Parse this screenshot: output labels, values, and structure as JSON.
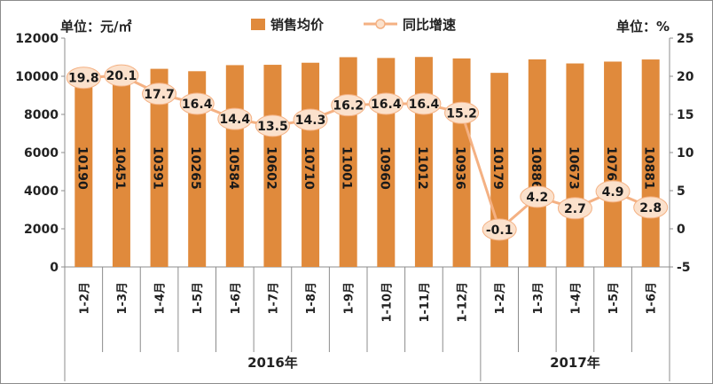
{
  "chart_data": {
    "type": "bar+line",
    "left_unit_label": "单位：元/㎡",
    "right_unit_label": "单位：%",
    "legend": [
      "销售均价",
      "同比增速"
    ],
    "legend_position": "top-center",
    "categories": [
      "1-2月",
      "1-3月",
      "1-4月",
      "1-5月",
      "1-6月",
      "1-7月",
      "1-8月",
      "1-9月",
      "1-10月",
      "1-11月",
      "1-12月",
      "1-2月",
      "1-3月",
      "1-4月",
      "1-5月",
      "1-6月"
    ],
    "groups": [
      {
        "label": "2016年",
        "count": 11
      },
      {
        "label": "2017年",
        "count": 5
      }
    ],
    "series": [
      {
        "name": "销售均价",
        "kind": "bar",
        "axis": "left",
        "color": "#E08A3C",
        "values": [
          10190,
          10451,
          10391,
          10265,
          10584,
          10602,
          10710,
          11001,
          10960,
          11012,
          10936,
          10179,
          10886,
          10673,
          10769,
          10881
        ],
        "labels": [
          "10190",
          "10451",
          "10391",
          "10265",
          "10584",
          "10602",
          "10710",
          "11001",
          "10960",
          "11012",
          "10936",
          "10179",
          "10886",
          "10673",
          "10769",
          "10881"
        ]
      },
      {
        "name": "同比增速",
        "kind": "line",
        "axis": "right",
        "color": "#F4B183",
        "values": [
          19.8,
          20.1,
          17.7,
          16.4,
          14.4,
          13.5,
          14.3,
          16.2,
          16.4,
          16.4,
          15.2,
          -0.1,
          4.2,
          2.7,
          4.9,
          2.8
        ],
        "labels": [
          "19.8",
          "20.1",
          "17.7",
          "16.4",
          "14.4",
          "13.5",
          "14.3",
          "16.2",
          "16.4",
          "16.4",
          "15.2",
          "-0.1",
          "4.2",
          "2.7",
          "4.9",
          "2.8"
        ]
      }
    ],
    "left_axis": {
      "min": 0,
      "max": 12000,
      "ticks": [
        "0",
        "2000",
        "4000",
        "6000",
        "8000",
        "10000",
        "12000"
      ]
    },
    "right_axis": {
      "min": -5,
      "max": 25,
      "ticks": [
        "-5",
        "0",
        "5",
        "10",
        "15",
        "20",
        "25"
      ]
    },
    "grid": false
  }
}
